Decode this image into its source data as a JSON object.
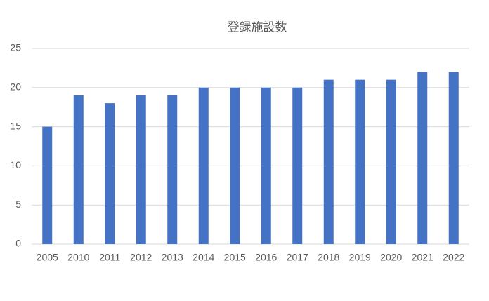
{
  "chart_data": {
    "type": "bar",
    "title": "登録施設数",
    "categories": [
      "2005",
      "2010",
      "2011",
      "2012",
      "2013",
      "2014",
      "2015",
      "2016",
      "2017",
      "2018",
      "2019",
      "2020",
      "2021",
      "2022"
    ],
    "values": [
      15,
      19,
      18,
      19,
      19,
      20,
      20,
      20,
      20,
      21,
      21,
      21,
      22,
      22
    ],
    "color": "#4472c4",
    "ylim": [
      0,
      25
    ],
    "yticks": [
      0,
      5,
      10,
      15,
      20,
      25
    ],
    "grid": true
  }
}
